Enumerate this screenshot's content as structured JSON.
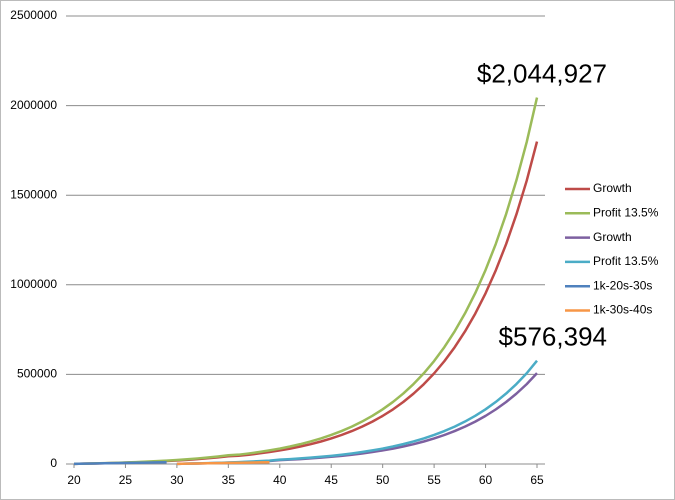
{
  "chart_data": {
    "type": "line",
    "x": [
      20,
      21,
      22,
      23,
      24,
      25,
      26,
      27,
      28,
      29,
      30,
      31,
      32,
      33,
      34,
      35,
      36,
      37,
      38,
      39,
      40,
      41,
      42,
      43,
      44,
      45,
      46,
      47,
      48,
      49,
      50,
      51,
      52,
      53,
      54,
      55,
      56,
      57,
      58,
      59,
      60,
      61,
      62,
      63,
      64,
      65
    ],
    "xlim": [
      20,
      65
    ],
    "xticks": [
      20,
      25,
      30,
      35,
      40,
      45,
      50,
      55,
      60,
      65
    ],
    "ylim": [
      0,
      2500000
    ],
    "yticks": [
      0,
      500000,
      1000000,
      1500000,
      2000000,
      2500000
    ],
    "grid": true,
    "legend": "right",
    "annotations": [
      "$2,044,927",
      "$576,394"
    ],
    "series": [
      {
        "name": "Growth",
        "color": "#be4b48",
        "values": [
          880,
          1879,
          3012,
          4299,
          5760,
          7418,
          9299,
          11435,
          13858,
          16609,
          19731,
          23275,
          27298,
          31863,
          37044,
          42926,
          45760,
          51920,
          58960,
          66880,
          75680,
          85897,
          97476,
          110644,
          125629,
          142581,
          161804,
          183675,
          208423,
          236576,
          268513,
          304763,
          345933,
          392628,
          445604,
          505769,
          574108,
          651605,
          739545,
          839291,
          952811,
          1081467,
          1227530,
          1393269,
          1580955,
          1799536
        ]
      },
      {
        "name": "Profit 13.5%",
        "color": "#9bbb59",
        "values": [
          1000,
          2135,
          3423,
          4885,
          6545,
          8429,
          10567,
          12994,
          15748,
          18874,
          22422,
          26449,
          31020,
          36208,
          42096,
          48779,
          52000,
          59000,
          67000,
          76000,
          86000,
          97610,
          110768,
          125732,
          142760,
          162024,
          183868,
          208722,
          236844,
          268836,
          305128,
          346322,
          393106,
          446168,
          506368,
          574738,
          652396,
          740460,
          840392,
          953740,
          1082740,
          1228940,
          1394920,
          1583260,
          1796540,
          2044927
        ]
      },
      {
        "name": "Growth",
        "color": "#7d60a0",
        "values": [
          null,
          null,
          null,
          null,
          null,
          null,
          null,
          null,
          null,
          null,
          880,
          1879,
          3012,
          4299,
          5760,
          7418,
          9299,
          11435,
          13858,
          16609,
          21334,
          24214,
          27479,
          31191,
          35415,
          40194,
          45613,
          51778,
          58755,
          66691,
          75694,
          85913,
          97519,
          110682,
          125616,
          142577,
          161842,
          183688,
          208478,
          236596,
          268598,
          304865,
          346041,
          392762,
          445672,
          507227
        ]
      },
      {
        "name": "Profit 13.5%",
        "color": "#4bacc6",
        "values": [
          null,
          null,
          null,
          null,
          null,
          null,
          null,
          null,
          null,
          null,
          1000,
          2135,
          3423,
          4885,
          6545,
          8429,
          10567,
          12994,
          15748,
          18874,
          24243,
          27516,
          31226,
          35444,
          40244,
          45675,
          51833,
          58839,
          66767,
          75785,
          86016,
          97628,
          110817,
          125775,
          142745,
          162019,
          183911,
          208736,
          236907,
          268859,
          305225,
          346438,
          393228,
          446321,
          506445,
          576394
        ]
      },
      {
        "name": "1k-20s-30s",
        "color": "#4f81bd",
        "values": [
          1000,
          2000,
          3000,
          4000,
          5000,
          6000,
          7000,
          8000,
          9000,
          10000,
          null,
          null,
          null,
          null,
          null,
          null,
          null,
          null,
          null,
          null,
          null,
          null,
          null,
          null,
          null,
          null,
          null,
          null,
          null,
          null,
          null,
          null,
          null,
          null,
          null,
          null,
          null,
          null,
          null,
          null,
          null,
          null,
          null,
          null,
          null,
          null
        ]
      },
      {
        "name": "1k-30s-40s",
        "color": "#f79646",
        "values": [
          null,
          null,
          null,
          null,
          null,
          null,
          null,
          null,
          null,
          null,
          1000,
          2000,
          3000,
          4000,
          5000,
          6000,
          7000,
          8000,
          9000,
          10000,
          null,
          null,
          null,
          null,
          null,
          null,
          null,
          null,
          null,
          null,
          null,
          null,
          null,
          null,
          null,
          null,
          null,
          null,
          null,
          null,
          null,
          null,
          null,
          null,
          null,
          null
        ]
      }
    ]
  }
}
